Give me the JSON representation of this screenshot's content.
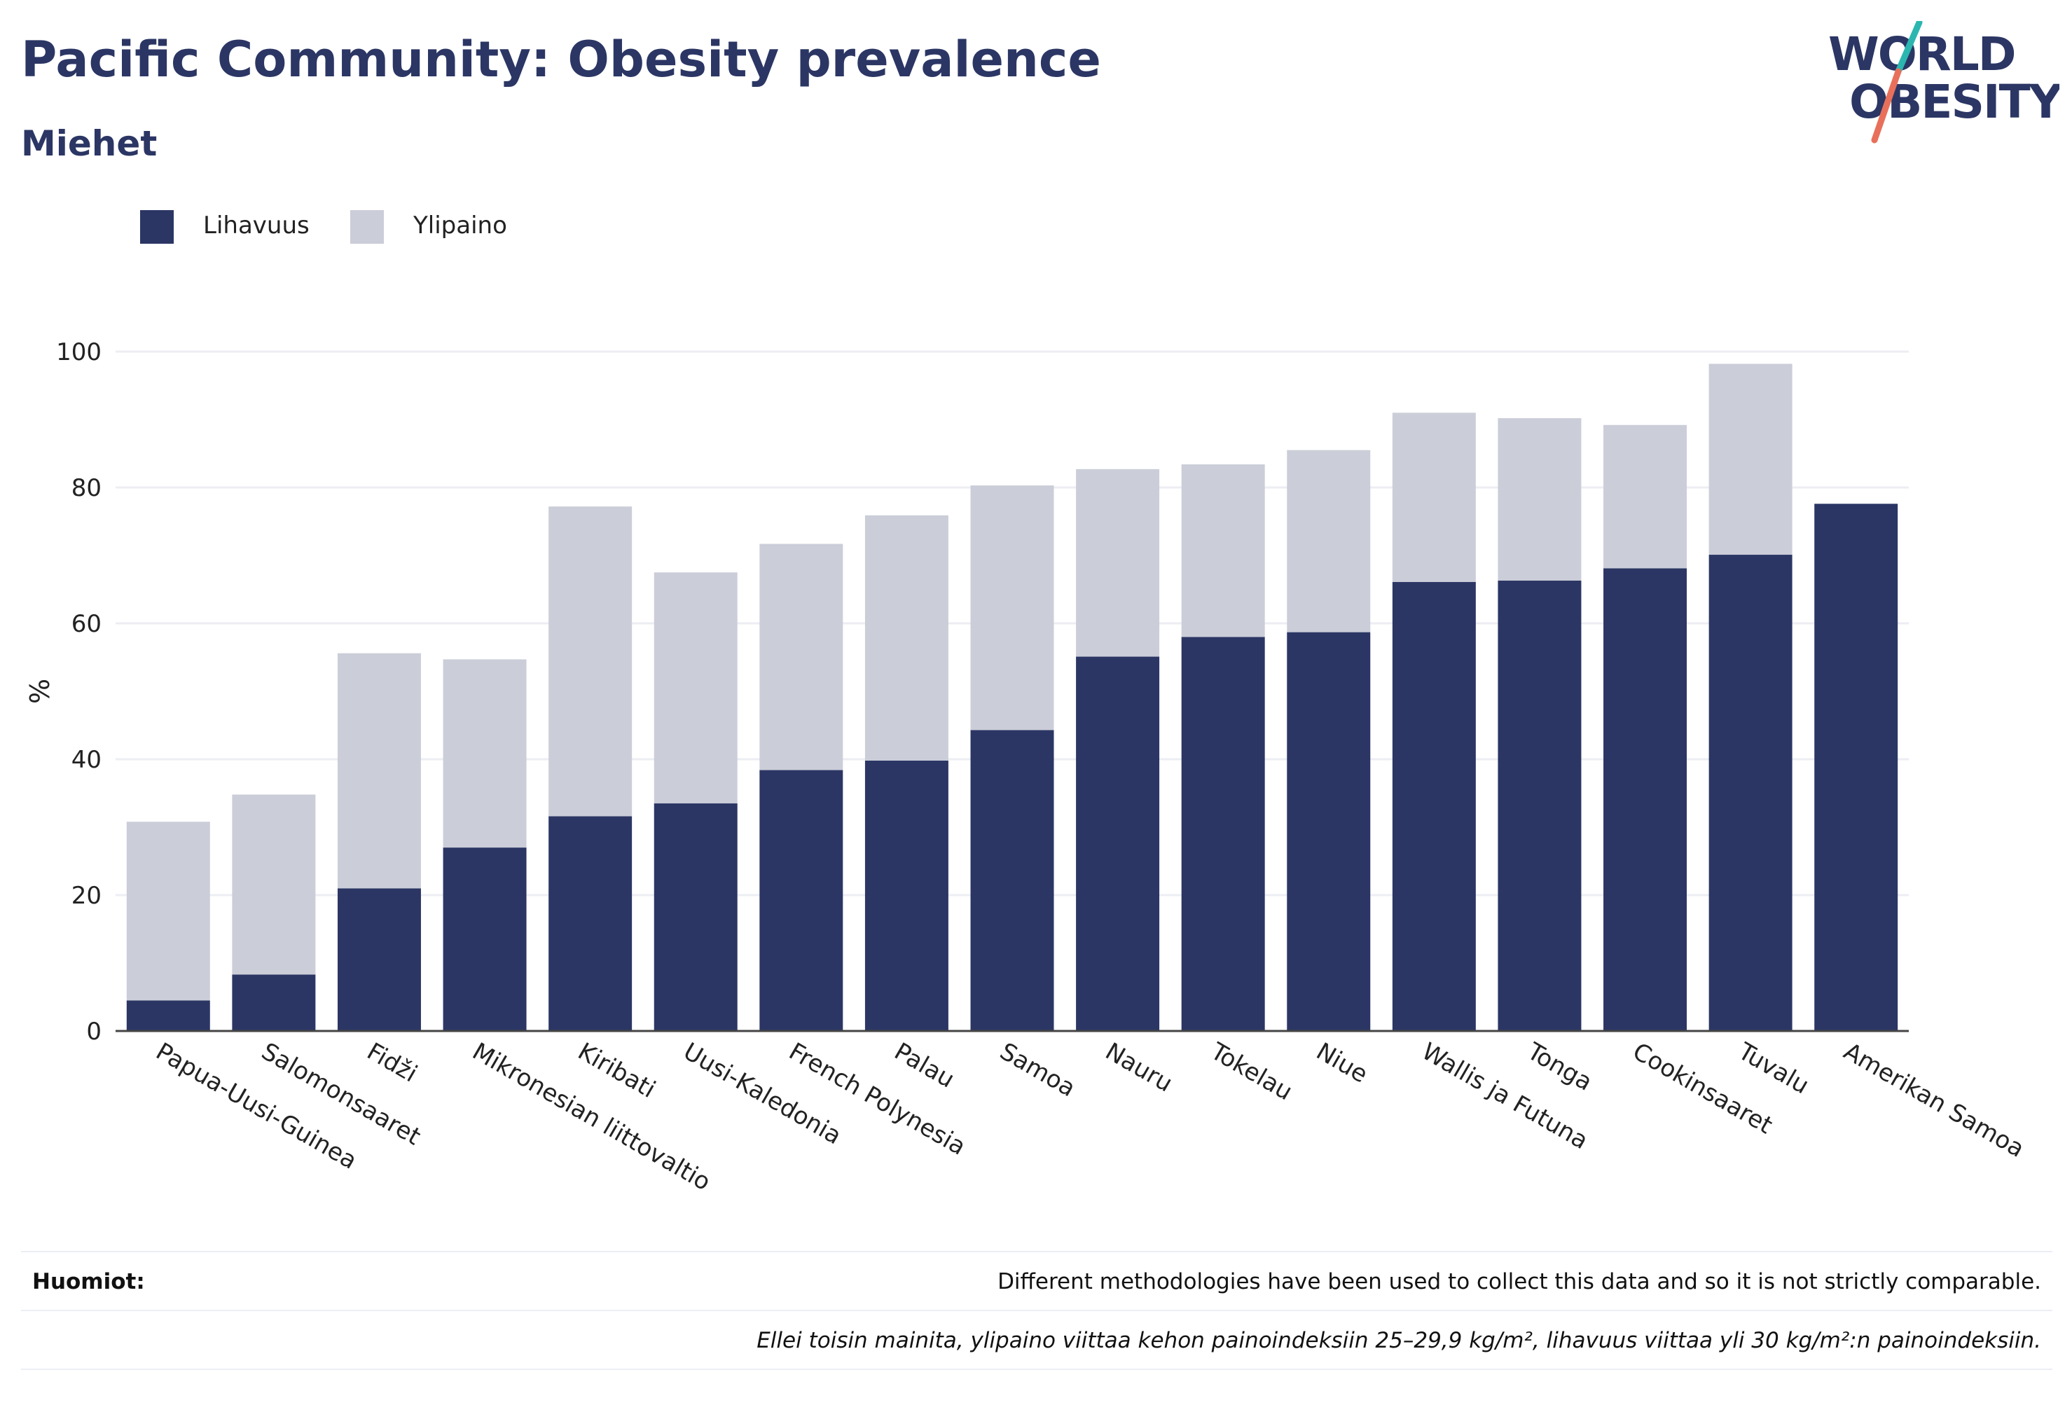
{
  "header": {
    "title": "Pacific Community: Obesity prevalence",
    "subtitle": "Miehet"
  },
  "logo": {
    "line1": "WORLD",
    "line2": "OBESITY"
  },
  "legend": [
    {
      "label": "Lihavuus",
      "color": "#2b3664"
    },
    {
      "label": "Ylipaino",
      "color": "#cbcdd8"
    }
  ],
  "notes": {
    "label": "Huomiot:",
    "text": "Different methodologies have been used to collect this data and so it is not strictly comparable.",
    "definition": "Ellei toisin mainita, ylipaino viittaa kehon painoindeksiin 25–29,9 kg/m², lihavuus viittaa yli 30 kg/m²:n painoindeksiin."
  },
  "chart_data": {
    "type": "bar",
    "stacked": true,
    "ylabel": "%",
    "ylim": [
      0,
      100
    ],
    "yticks": [
      0,
      20,
      40,
      60,
      80,
      100
    ],
    "grid": true,
    "legend_position": "top-left",
    "categories": [
      "Papua-Uusi-Guinea",
      "Salomonsaaret",
      "Fidži",
      "Mikronesian liittovaltio",
      "Kiribati",
      "Uusi-Kaledonia",
      "French Polynesia",
      "Palau",
      "Samoa",
      "Nauru",
      "Tokelau",
      "Niue",
      "Wallis ja Futuna",
      "Tonga",
      "Cookinsaaret",
      "Tuvalu",
      "Amerikan Samoa"
    ],
    "series": [
      {
        "name": "Lihavuus",
        "color": "#2b3664",
        "values": [
          4.5,
          8.3,
          21.0,
          27.0,
          31.6,
          33.5,
          38.4,
          39.8,
          44.3,
          55.1,
          58.0,
          58.7,
          66.1,
          66.3,
          68.1,
          70.1,
          77.6
        ]
      },
      {
        "name": "Ylipaino",
        "color": "#cbcdd8",
        "values": [
          26.3,
          26.5,
          34.6,
          27.7,
          45.6,
          34.0,
          33.3,
          36.1,
          36.0,
          27.6,
          25.4,
          26.8,
          24.9,
          23.9,
          21.1,
          28.1,
          0
        ]
      }
    ]
  }
}
